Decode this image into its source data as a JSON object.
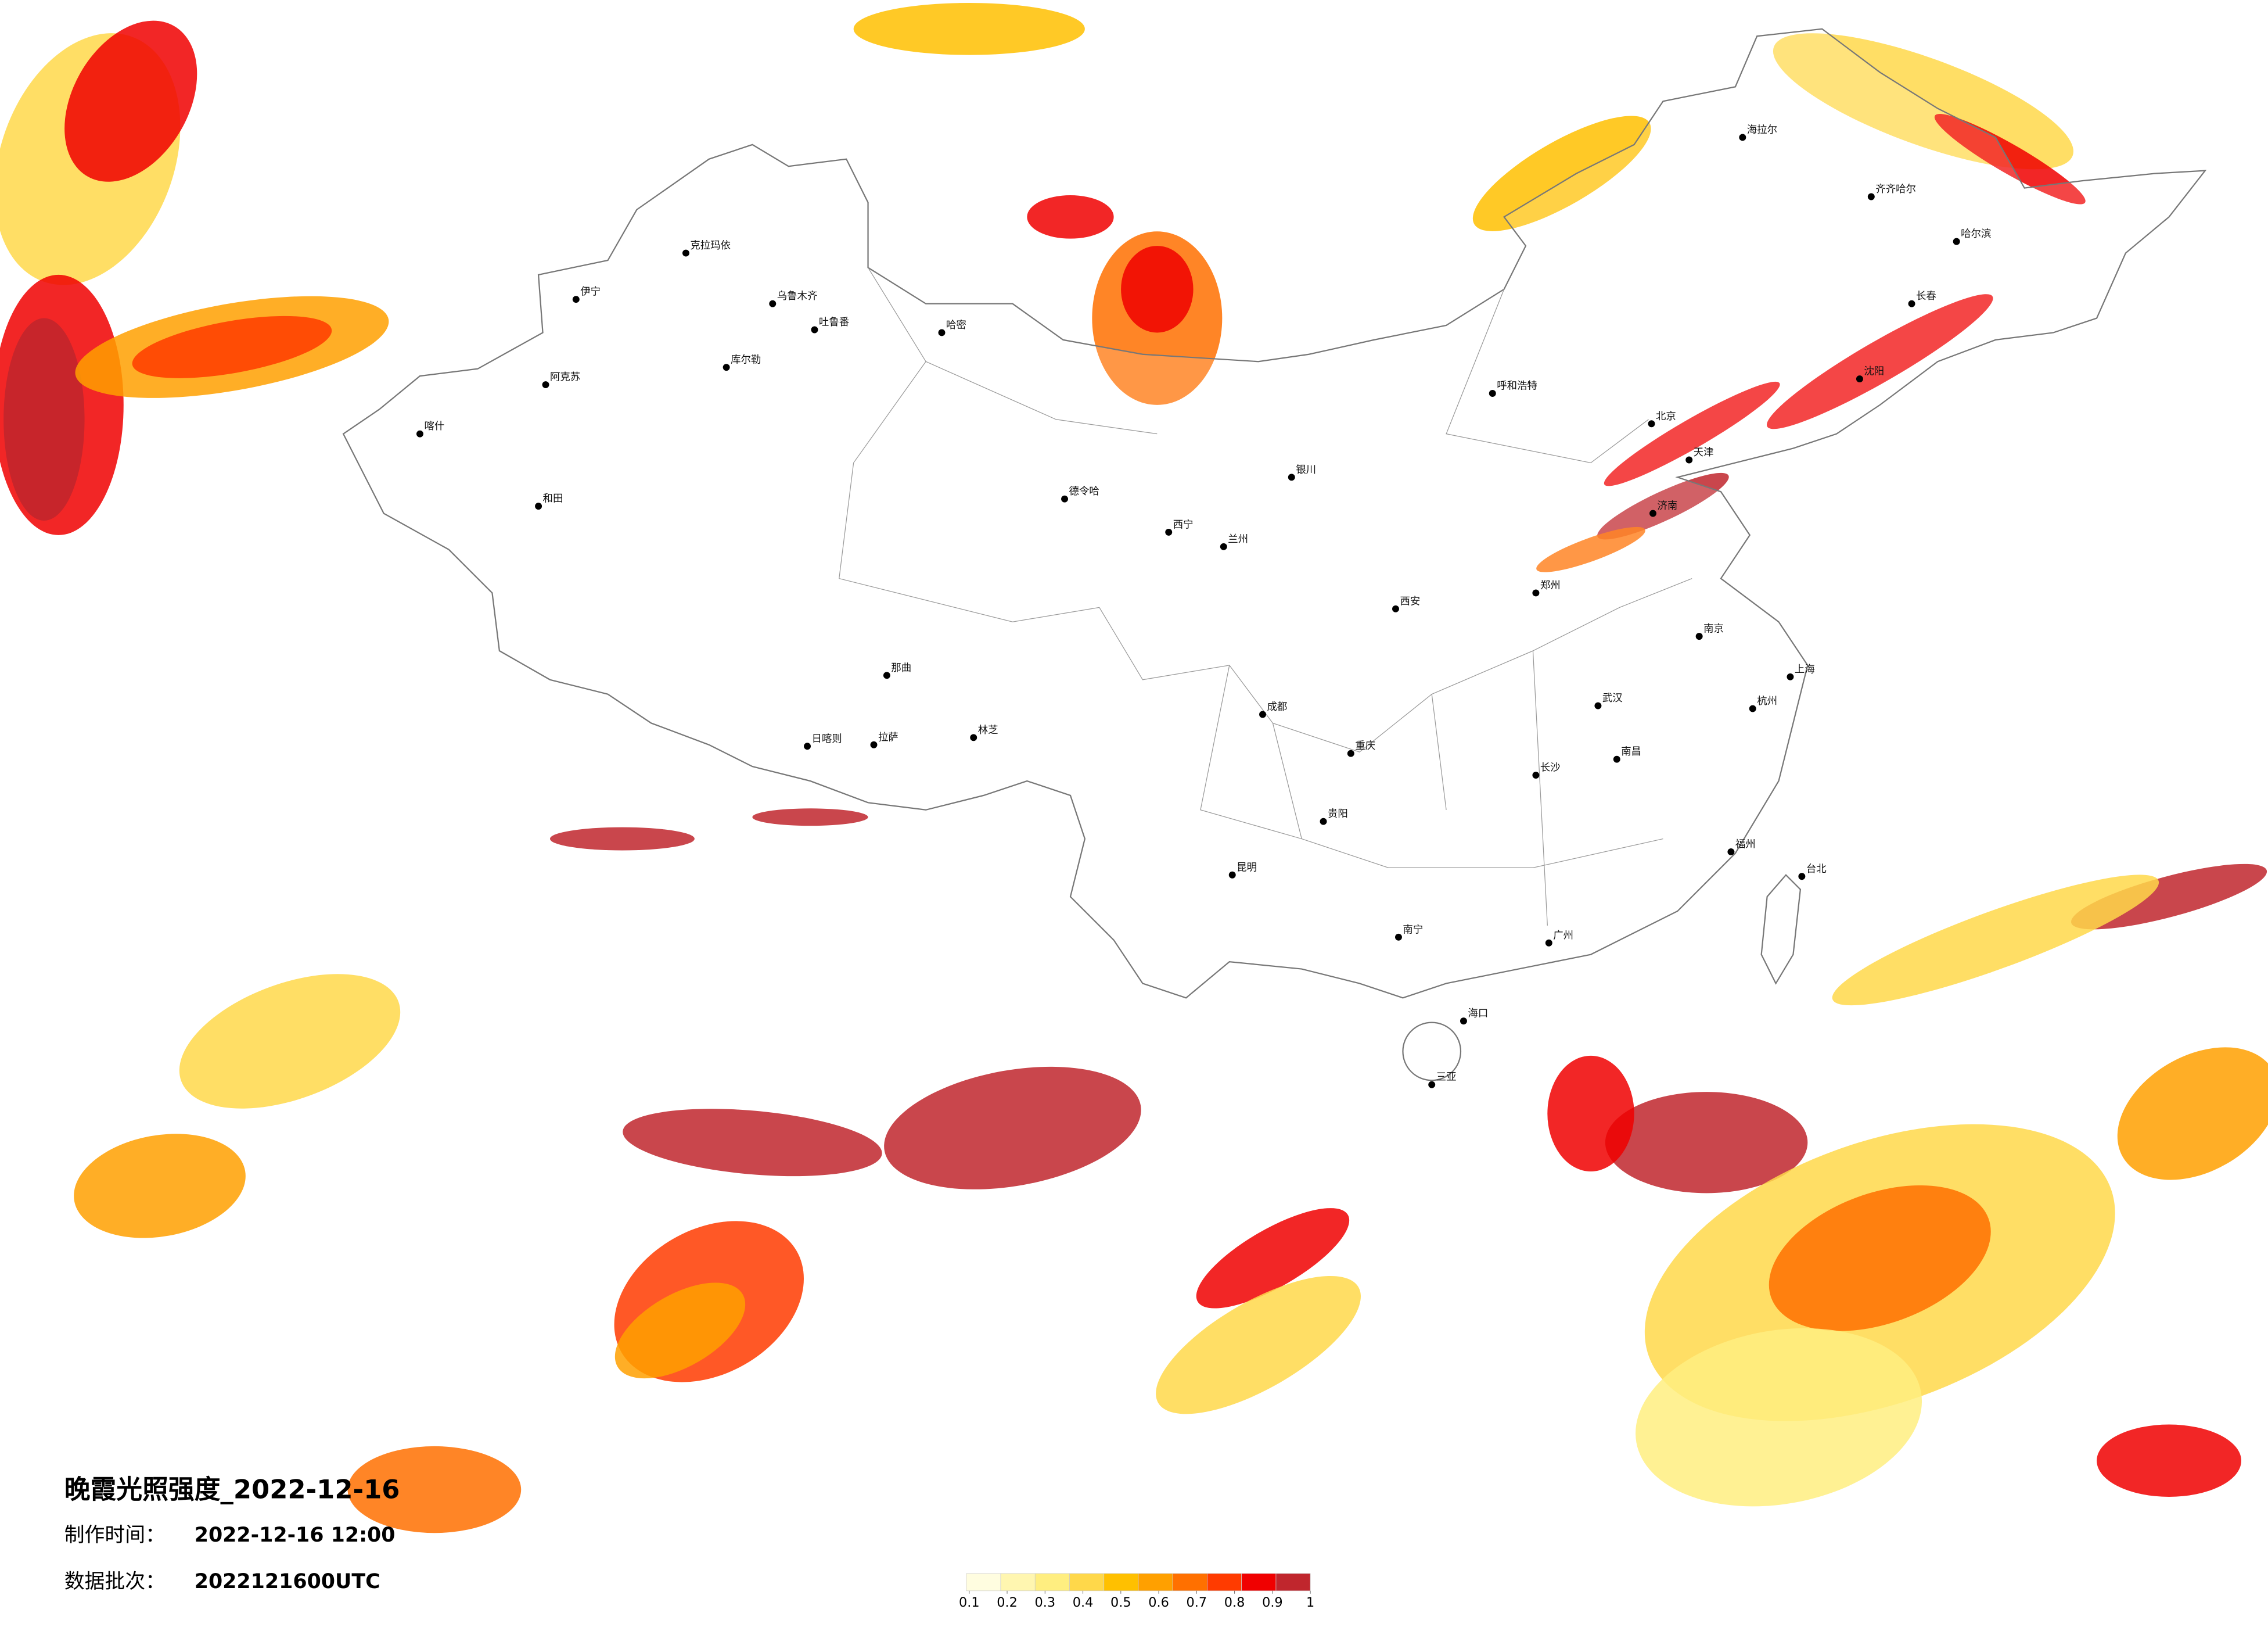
{
  "title": "晚霞光照强度_2022-12-16",
  "production_time": {
    "label": "制作时间：",
    "value": "2022-12-16 12:00"
  },
  "data_batch": {
    "label": "数据批次：",
    "value": "2022121600UTC"
  },
  "legend": {
    "colors": [
      "#fffde0",
      "#fff6b0",
      "#ffee80",
      "#ffd84a",
      "#ffc000",
      "#ffa000",
      "#ff7000",
      "#ff3b00",
      "#f00000",
      "#c0262d"
    ],
    "ticks": [
      0.1,
      0.2,
      0.3,
      0.4,
      0.5,
      0.6,
      0.7,
      0.8,
      0.9,
      1
    ]
  },
  "cities": [
    "克拉玛依",
    "伊宁",
    "乌鲁木齐",
    "吐鲁番",
    "哈密",
    "库尔勒",
    "阿克苏",
    "喀什",
    "和田",
    "德令哈",
    "拉萨",
    "日喀则",
    "林芝",
    "那曲",
    "海拉尔",
    "齐齐哈尔",
    "哈尔滨",
    "长春",
    "沈阳",
    "北京",
    "天津",
    "呼和浩特",
    "银川",
    "兰州",
    "西宁",
    "西安",
    "郑州",
    "济南",
    "武汉",
    "南京",
    "上海",
    "杭州",
    "长沙",
    "南昌",
    "福州",
    "广州",
    "南宁",
    "贵阳",
    "昆明",
    "成都",
    "重庆",
    "海口",
    "三亚",
    "台北"
  ]
}
